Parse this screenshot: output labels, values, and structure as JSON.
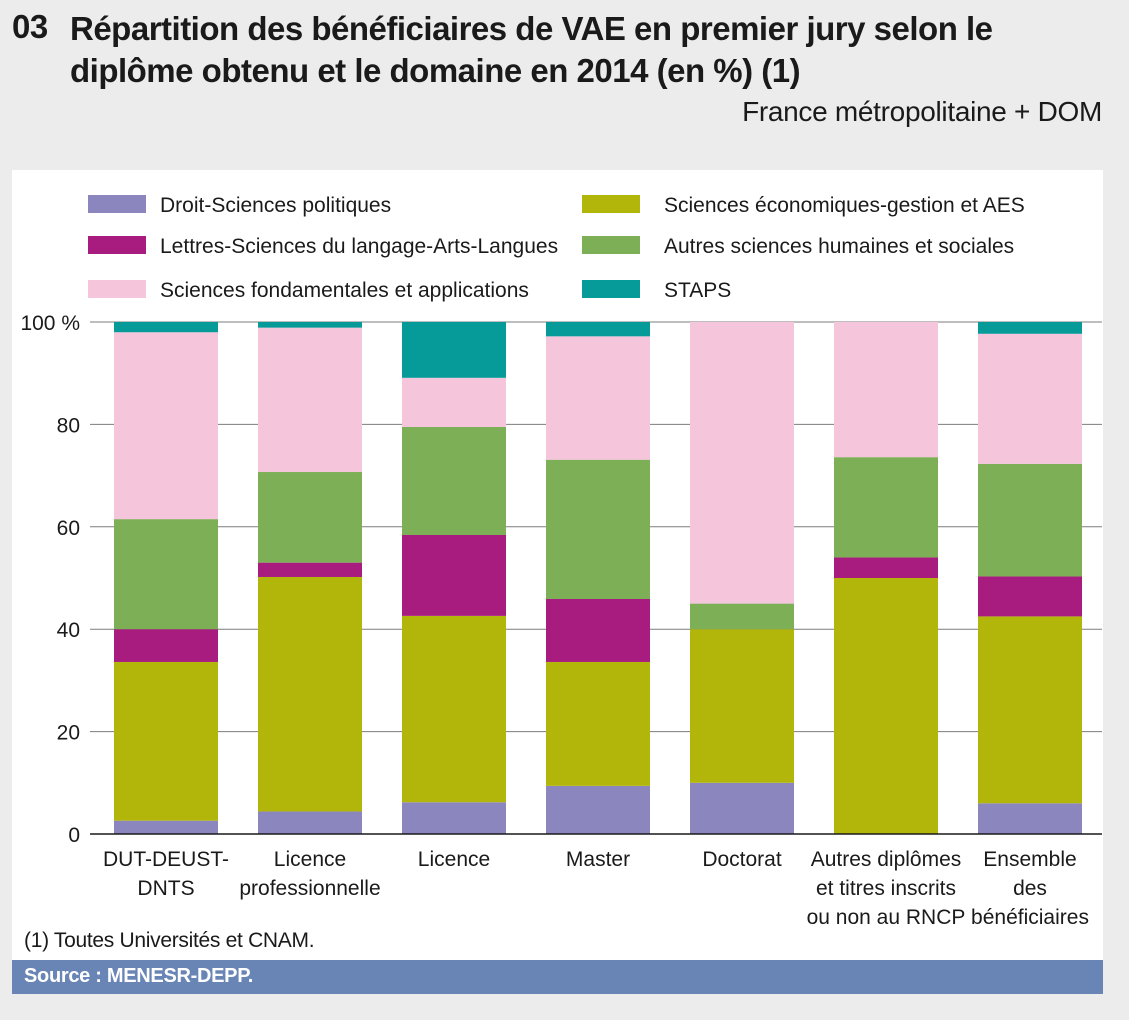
{
  "header": {
    "number": "03",
    "title": "Répartition des bénéficiaires de VAE en premier jury selon le diplôme obtenu et le domaine en 2014 (en %) (1)",
    "subtitle": "France métropolitaine + DOM"
  },
  "footnote": "(1) Toutes Universités et CNAM.",
  "source": "Source : MENESR-DEPP.",
  "chart_data": {
    "type": "bar",
    "stacked": true,
    "title": "Répartition des bénéficiaires de VAE en premier jury selon le diplôme obtenu et le domaine en 2014 (en %) (1)",
    "xlabel": "",
    "ylabel": "",
    "ylim": [
      0,
      100
    ],
    "yticks": [
      {
        "value": 0,
        "label": "0"
      },
      {
        "value": 20,
        "label": "20"
      },
      {
        "value": 40,
        "label": "40"
      },
      {
        "value": 60,
        "label": "60"
      },
      {
        "value": 80,
        "label": "80"
      },
      {
        "value": 100,
        "label": "100 %"
      }
    ],
    "grid": true,
    "legend_position": "top",
    "categories": [
      [
        "DUT-DEUST-",
        "DNTS"
      ],
      [
        "Licence",
        "professionnelle"
      ],
      [
        "Licence"
      ],
      [
        "Master"
      ],
      [
        "Doctorat"
      ],
      [
        "Autres diplômes",
        "et titres inscrits",
        "ou non au RNCP"
      ],
      [
        "Ensemble",
        "des",
        "bénéficiaires"
      ]
    ],
    "series": [
      {
        "name": "Droit-Sciences politiques",
        "color": "#8b87be",
        "values": [
          2.6,
          4.4,
          6.2,
          9.4,
          10,
          0,
          6
        ]
      },
      {
        "name": "Sciences économiques-gestion et AES",
        "color": "#b3b60a",
        "values": [
          31,
          45.8,
          36.4,
          24.2,
          30,
          50,
          36.5
        ]
      },
      {
        "name": "Lettres-Sciences du langage-Arts-Langues",
        "color": "#a91c7f",
        "values": [
          6.4,
          2.8,
          15.8,
          12.3,
          0,
          4,
          7.8
        ]
      },
      {
        "name": "Autres sciences humaines et sociales",
        "color": "#7daf57",
        "values": [
          21.5,
          17.7,
          21.1,
          27.2,
          5,
          19.6,
          22
        ]
      },
      {
        "name": "Sciences fondamentales et applications",
        "color": "#f5c5dc",
        "values": [
          36.5,
          28.2,
          9.6,
          24.1,
          55,
          26.4,
          25.4
        ]
      },
      {
        "name": "STAPS",
        "color": "#069a98",
        "values": [
          2,
          1.1,
          10.9,
          2.8,
          0,
          0,
          2.3
        ]
      }
    ],
    "legend_order": [
      "Droit-Sciences politiques",
      "Sciences économiques-gestion et AES",
      "Lettres-Sciences du langage-Arts-Langues",
      "Autres sciences humaines et sociales",
      "Sciences fondamentales et applications",
      "STAPS"
    ]
  }
}
